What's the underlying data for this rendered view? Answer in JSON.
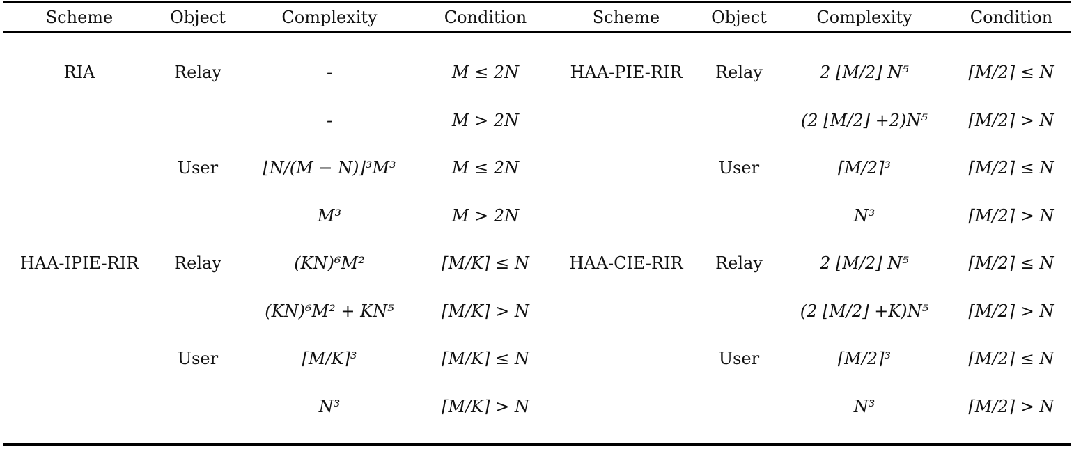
{
  "headers": [
    "Scheme",
    "Object",
    "Complexity",
    "Condition",
    "Scheme",
    "Object",
    "Complexity",
    "Condition"
  ],
  "rows": [
    [
      "RIA",
      "Relay",
      "-",
      "M ≤ 2N",
      "HAA-PIE-RIR",
      "Relay",
      "2 ⌊M/2⌋ N⁵",
      "⌈M/2⌉ ≤ N"
    ],
    [
      "",
      "",
      "-",
      "M > 2N",
      "",
      "",
      "(2 ⌊M/2⌋ +2)N⁵",
      "⌈M/2⌉ > N"
    ],
    [
      "",
      "User",
      "⌊N/(M − N)⌋³M³",
      "M ≤ 2N",
      "",
      "User",
      "⌈M/2⌉³",
      "⌈M/2⌉ ≤ N"
    ],
    [
      "",
      "",
      "M³",
      "M > 2N",
      "",
      "",
      "N³",
      "⌈M/2⌉ > N"
    ],
    [
      "HAA-IPIE-RIR",
      "Relay",
      "(KN)⁶M²",
      "⌈M/K⌉ ≤ N",
      "HAA-CIE-RIR",
      "Relay",
      "2 ⌊M/2⌋ N⁵",
      "⌈M/2⌉ ≤ N"
    ],
    [
      "",
      "",
      "(KN)⁶M² + KN⁵",
      "⌈M/K⌉ > N",
      "",
      "",
      "(2 ⌊M/2⌋ +K)N⁵",
      "⌈M/2⌉ > N"
    ],
    [
      "",
      "User",
      "⌈M/K⌉³",
      "⌈M/K⌉ ≤ N",
      "",
      "User",
      "⌈M/2⌉³",
      "⌈M/2⌉ ≤ N"
    ],
    [
      "",
      "",
      "N³",
      "⌈M/K⌉ > N",
      "",
      "",
      "N³",
      "⌈M/2⌉ > N"
    ]
  ]
}
